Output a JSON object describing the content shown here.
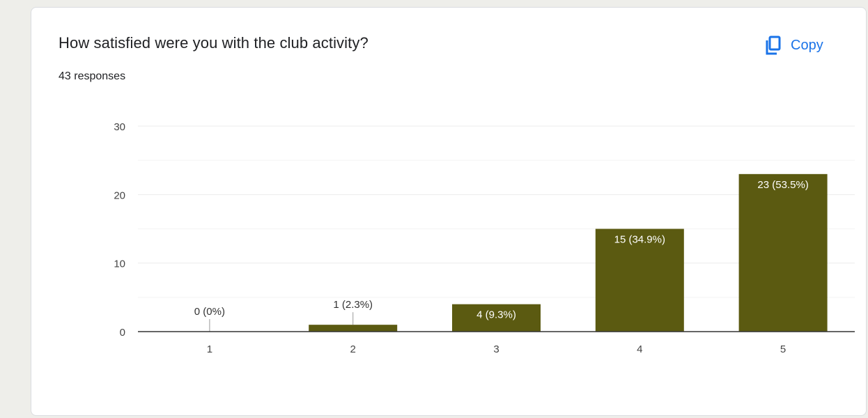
{
  "card": {
    "title": "How satisfied were you with the club activity?",
    "responses": "43 responses",
    "copy_label": "Copy",
    "copy_icon": "copy-icon"
  },
  "colors": {
    "bar": "#5b5a11",
    "accent": "#1a73e8",
    "gridline": "#ececec",
    "axis": "#333333"
  },
  "chart_data": {
    "type": "bar",
    "categories": [
      "1",
      "2",
      "3",
      "4",
      "5"
    ],
    "values": [
      0,
      1,
      4,
      15,
      23
    ],
    "data_labels": [
      "0 (0%)",
      "1 (2.3%)",
      "4 (9.3%)",
      "15 (34.9%)",
      "23 (53.5%)"
    ],
    "ylim": [
      0,
      30
    ],
    "yticks": [
      0,
      10,
      20,
      30
    ],
    "minor_gridlines": [
      5,
      15,
      25
    ],
    "grid": true,
    "title": "",
    "xlabel": "",
    "ylabel": ""
  }
}
